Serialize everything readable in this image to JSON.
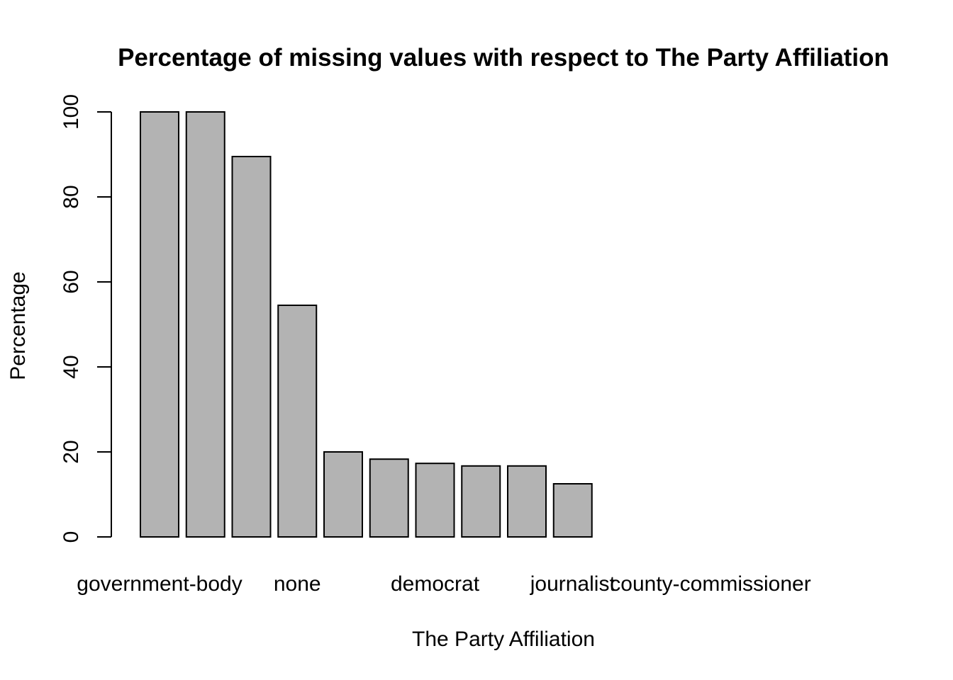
{
  "chart_data": {
    "type": "bar",
    "title": "Percentage of missing values with respect to The Party Affiliation",
    "xlabel": "The Party Affiliation",
    "ylabel": "Percentage",
    "ylim": [
      0,
      100
    ],
    "yticks": [
      0,
      20,
      40,
      60,
      80,
      100
    ],
    "categories": [
      "government-body",
      "",
      "",
      "none",
      "",
      "",
      "democrat",
      "",
      "",
      "journalist",
      "",
      "",
      "county-commissioner",
      "",
      "",
      ""
    ],
    "values": [
      100,
      100,
      89.5,
      54.5,
      20,
      18.3,
      17.3,
      16.7,
      16.7,
      12.5,
      0,
      0,
      0,
      0,
      0,
      0
    ],
    "bar_color": "#b3b3b3",
    "grid": false
  }
}
